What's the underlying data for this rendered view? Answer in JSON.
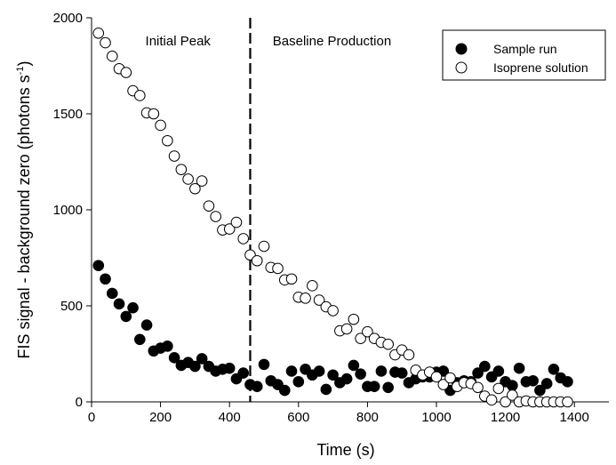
{
  "chart_data": {
    "type": "scatter",
    "xlabel": "Time (s)",
    "ylabel_main": "FIS signal - background zero (photons s",
    "ylabel_sup": "-1",
    "ylabel_close": ")",
    "xlim": [
      0,
      1500
    ],
    "ylim": [
      0,
      2000
    ],
    "xticks": [
      0,
      200,
      400,
      600,
      800,
      1000,
      1200,
      1400
    ],
    "yticks": [
      0,
      500,
      1000,
      1500,
      2000
    ],
    "grid": false,
    "legend_position": "top-right",
    "annotations": {
      "divider_x": 460,
      "left_label": "Initial Peak",
      "right_label": "Baseline Production"
    },
    "series": [
      {
        "name": "Sample run",
        "marker": "filled-circle",
        "color": "#000000",
        "points": [
          [
            20,
            710
          ],
          [
            40,
            640
          ],
          [
            60,
            565
          ],
          [
            80,
            510
          ],
          [
            100,
            445
          ],
          [
            120,
            490
          ],
          [
            140,
            325
          ],
          [
            160,
            400
          ],
          [
            180,
            265
          ],
          [
            200,
            280
          ],
          [
            220,
            290
          ],
          [
            240,
            230
          ],
          [
            260,
            190
          ],
          [
            280,
            205
          ],
          [
            300,
            185
          ],
          [
            320,
            225
          ],
          [
            340,
            185
          ],
          [
            360,
            160
          ],
          [
            380,
            170
          ],
          [
            400,
            175
          ],
          [
            420,
            120
          ],
          [
            440,
            150
          ],
          [
            460,
            90
          ],
          [
            480,
            80
          ],
          [
            500,
            195
          ],
          [
            520,
            110
          ],
          [
            540,
            90
          ],
          [
            560,
            60
          ],
          [
            580,
            160
          ],
          [
            600,
            105
          ],
          [
            620,
            170
          ],
          [
            640,
            140
          ],
          [
            660,
            160
          ],
          [
            680,
            65
          ],
          [
            700,
            140
          ],
          [
            720,
            100
          ],
          [
            740,
            120
          ],
          [
            760,
            190
          ],
          [
            780,
            145
          ],
          [
            800,
            80
          ],
          [
            820,
            80
          ],
          [
            840,
            160
          ],
          [
            860,
            75
          ],
          [
            880,
            155
          ],
          [
            900,
            150
          ],
          [
            920,
            100
          ],
          [
            940,
            120
          ],
          [
            960,
            130
          ],
          [
            980,
            130
          ],
          [
            1000,
            155
          ],
          [
            1020,
            160
          ],
          [
            1040,
            60
          ],
          [
            1060,
            100
          ],
          [
            1080,
            110
          ],
          [
            1100,
            105
          ],
          [
            1120,
            150
          ],
          [
            1140,
            185
          ],
          [
            1160,
            130
          ],
          [
            1180,
            160
          ],
          [
            1200,
            105
          ],
          [
            1220,
            85
          ],
          [
            1240,
            175
          ],
          [
            1260,
            105
          ],
          [
            1280,
            110
          ],
          [
            1300,
            60
          ],
          [
            1320,
            95
          ],
          [
            1340,
            170
          ],
          [
            1360,
            125
          ],
          [
            1380,
            105
          ]
        ]
      },
      {
        "name": "Isoprene solution",
        "marker": "open-circle",
        "color": "#000000",
        "points": [
          [
            20,
            1920
          ],
          [
            40,
            1870
          ],
          [
            60,
            1800
          ],
          [
            80,
            1735
          ],
          [
            100,
            1715
          ],
          [
            120,
            1620
          ],
          [
            140,
            1595
          ],
          [
            160,
            1505
          ],
          [
            180,
            1500
          ],
          [
            200,
            1440
          ],
          [
            220,
            1360
          ],
          [
            240,
            1280
          ],
          [
            260,
            1210
          ],
          [
            280,
            1160
          ],
          [
            300,
            1110
          ],
          [
            320,
            1150
          ],
          [
            340,
            1020
          ],
          [
            360,
            965
          ],
          [
            380,
            895
          ],
          [
            400,
            900
          ],
          [
            420,
            935
          ],
          [
            440,
            850
          ],
          [
            460,
            765
          ],
          [
            480,
            735
          ],
          [
            500,
            810
          ],
          [
            520,
            700
          ],
          [
            540,
            695
          ],
          [
            560,
            635
          ],
          [
            580,
            640
          ],
          [
            600,
            545
          ],
          [
            620,
            540
          ],
          [
            640,
            605
          ],
          [
            660,
            530
          ],
          [
            680,
            495
          ],
          [
            700,
            475
          ],
          [
            720,
            370
          ],
          [
            740,
            380
          ],
          [
            760,
            430
          ],
          [
            780,
            330
          ],
          [
            800,
            365
          ],
          [
            820,
            330
          ],
          [
            840,
            310
          ],
          [
            860,
            300
          ],
          [
            880,
            245
          ],
          [
            900,
            270
          ],
          [
            920,
            245
          ],
          [
            940,
            165
          ],
          [
            960,
            140
          ],
          [
            980,
            155
          ],
          [
            1000,
            130
          ],
          [
            1020,
            90
          ],
          [
            1040,
            125
          ],
          [
            1060,
            80
          ],
          [
            1080,
            100
          ],
          [
            1100,
            95
          ],
          [
            1120,
            75
          ],
          [
            1140,
            30
          ],
          [
            1160,
            10
          ],
          [
            1180,
            70
          ],
          [
            1200,
            0
          ],
          [
            1220,
            35
          ],
          [
            1240,
            0
          ],
          [
            1260,
            5
          ],
          [
            1280,
            0
          ],
          [
            1300,
            0
          ],
          [
            1320,
            0
          ],
          [
            1340,
            0
          ],
          [
            1360,
            0
          ],
          [
            1380,
            0
          ]
        ]
      }
    ]
  }
}
